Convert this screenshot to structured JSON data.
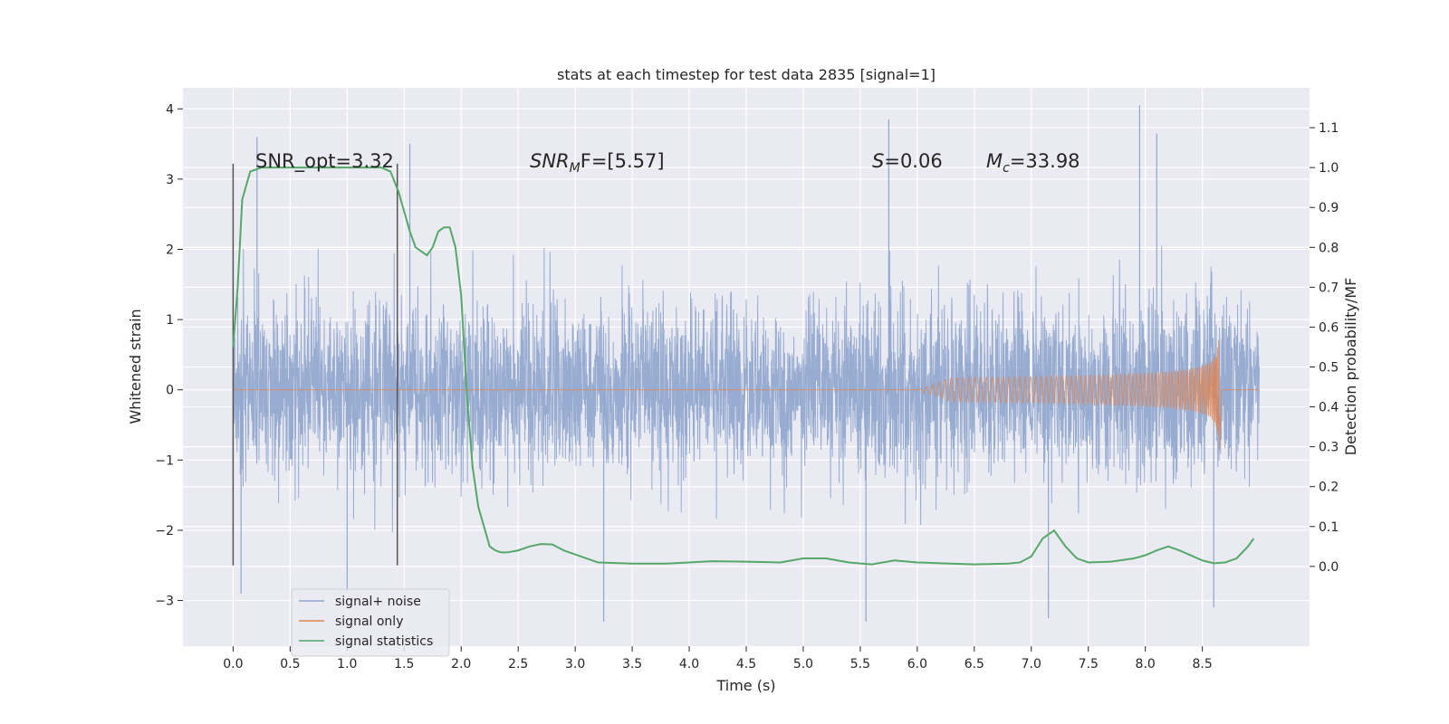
{
  "chart_data": {
    "type": "line",
    "title": "stats at each timestep for test data 2835 [signal=1]",
    "xlabel": "Time (s)",
    "ylabel": "Whitened strain",
    "y2label": "Detection probability/MF",
    "xlim": [
      -0.44,
      9.44
    ],
    "ylim": [
      -3.65,
      4.3
    ],
    "y2lim": [
      -0.2,
      1.2
    ],
    "xticks": [
      "0.0",
      "0.5",
      "1.0",
      "1.5",
      "2.0",
      "2.5",
      "3.0",
      "3.5",
      "4.0",
      "4.5",
      "5.0",
      "5.5",
      "6.0",
      "6.5",
      "7.0",
      "7.5",
      "8.0",
      "8.5"
    ],
    "yticks": [
      "−3",
      "−2",
      "−1",
      "0",
      "1",
      "2",
      "3",
      "4"
    ],
    "y2ticks": [
      "0.0",
      "0.1",
      "0.2",
      "0.3",
      "0.4",
      "0.5",
      "0.6",
      "0.7",
      "0.8",
      "0.9",
      "1.0",
      "1.1"
    ],
    "grid": true,
    "legend_position": "bottom-left",
    "colors": {
      "background": "#eaeaf2",
      "grid": "#ffffff",
      "noise": "#8fa5cd",
      "signal": "#dd8452",
      "stats": "#55a868",
      "vline": "#555555"
    },
    "annotations": {
      "snr_opt": "SNR_opt=3.32",
      "snr_mf_main": "SNR",
      "snr_mf_sub": "M",
      "snr_mf_rest": "F=[5.57]",
      "s_italic": "S",
      "s_value": "=0.06",
      "mc_main": "M",
      "mc_sub": "c",
      "mc_value": "=33.98"
    },
    "vertical_lines": [
      {
        "x": 0.0,
        "y_range": [
          -2.5,
          3.22
        ]
      },
      {
        "x": 1.44,
        "y_range": [
          -2.5,
          3.22
        ]
      }
    ],
    "series": [
      {
        "name": "signal+ noise",
        "axis": "left",
        "x_range": [
          0.0,
          9.0
        ],
        "envelope_inner": [
          -1.55,
          1.5
        ],
        "typical_peaks": [
          2.2,
          -2.1
        ],
        "notable_spikes": [
          {
            "x": 0.21,
            "y": 3.6
          },
          {
            "x": 1.55,
            "y": 3.5
          },
          {
            "x": 5.75,
            "y": 3.85
          },
          {
            "x": 7.95,
            "y": 4.05
          },
          {
            "x": 8.1,
            "y": 3.65
          },
          {
            "x": 3.25,
            "y": -3.3
          },
          {
            "x": 5.55,
            "y": -3.3
          },
          {
            "x": 7.15,
            "y": -3.25
          },
          {
            "x": 8.6,
            "y": -3.1
          },
          {
            "x": 0.07,
            "y": -2.9
          },
          {
            "x": 1.0,
            "y": -2.9
          }
        ]
      },
      {
        "name": "signal only",
        "axis": "left",
        "x_range": [
          0.0,
          9.0
        ],
        "chirp_peak_time": 8.65,
        "chirp_peak_amplitude": 0.85,
        "chirp_visible_from": 6.0
      },
      {
        "name": "signal statistics",
        "axis": "right",
        "x": [
          0.0,
          0.04,
          0.08,
          0.15,
          0.25,
          0.4,
          0.7,
          1.0,
          1.2,
          1.3,
          1.38,
          1.45,
          1.5,
          1.55,
          1.6,
          1.65,
          1.7,
          1.75,
          1.8,
          1.85,
          1.9,
          1.95,
          2.0,
          2.05,
          2.1,
          2.15,
          2.2,
          2.25,
          2.3,
          2.35,
          2.4,
          2.5,
          2.6,
          2.7,
          2.8,
          2.9,
          3.0,
          3.2,
          3.5,
          3.8,
          4.0,
          4.2,
          4.5,
          4.8,
          5.0,
          5.2,
          5.4,
          5.6,
          5.8,
          6.0,
          6.2,
          6.5,
          6.8,
          6.9,
          7.0,
          7.1,
          7.15,
          7.2,
          7.3,
          7.4,
          7.5,
          7.7,
          7.9,
          8.0,
          8.1,
          8.2,
          8.3,
          8.5,
          8.6,
          8.7,
          8.8,
          8.9,
          8.95
        ],
        "y": [
          0.55,
          0.7,
          0.92,
          0.99,
          1.0,
          1.0,
          1.0,
          1.0,
          1.0,
          1.0,
          0.99,
          0.94,
          0.89,
          0.84,
          0.8,
          0.79,
          0.78,
          0.8,
          0.84,
          0.85,
          0.85,
          0.8,
          0.68,
          0.43,
          0.25,
          0.15,
          0.1,
          0.05,
          0.04,
          0.035,
          0.035,
          0.04,
          0.05,
          0.056,
          0.055,
          0.04,
          0.03,
          0.01,
          0.007,
          0.007,
          0.01,
          0.013,
          0.012,
          0.01,
          0.02,
          0.02,
          0.01,
          0.005,
          0.015,
          0.01,
          0.008,
          0.005,
          0.007,
          0.01,
          0.025,
          0.07,
          0.08,
          0.09,
          0.05,
          0.02,
          0.01,
          0.012,
          0.02,
          0.028,
          0.04,
          0.05,
          0.04,
          0.015,
          0.008,
          0.01,
          0.02,
          0.05,
          0.07
        ]
      }
    ]
  }
}
